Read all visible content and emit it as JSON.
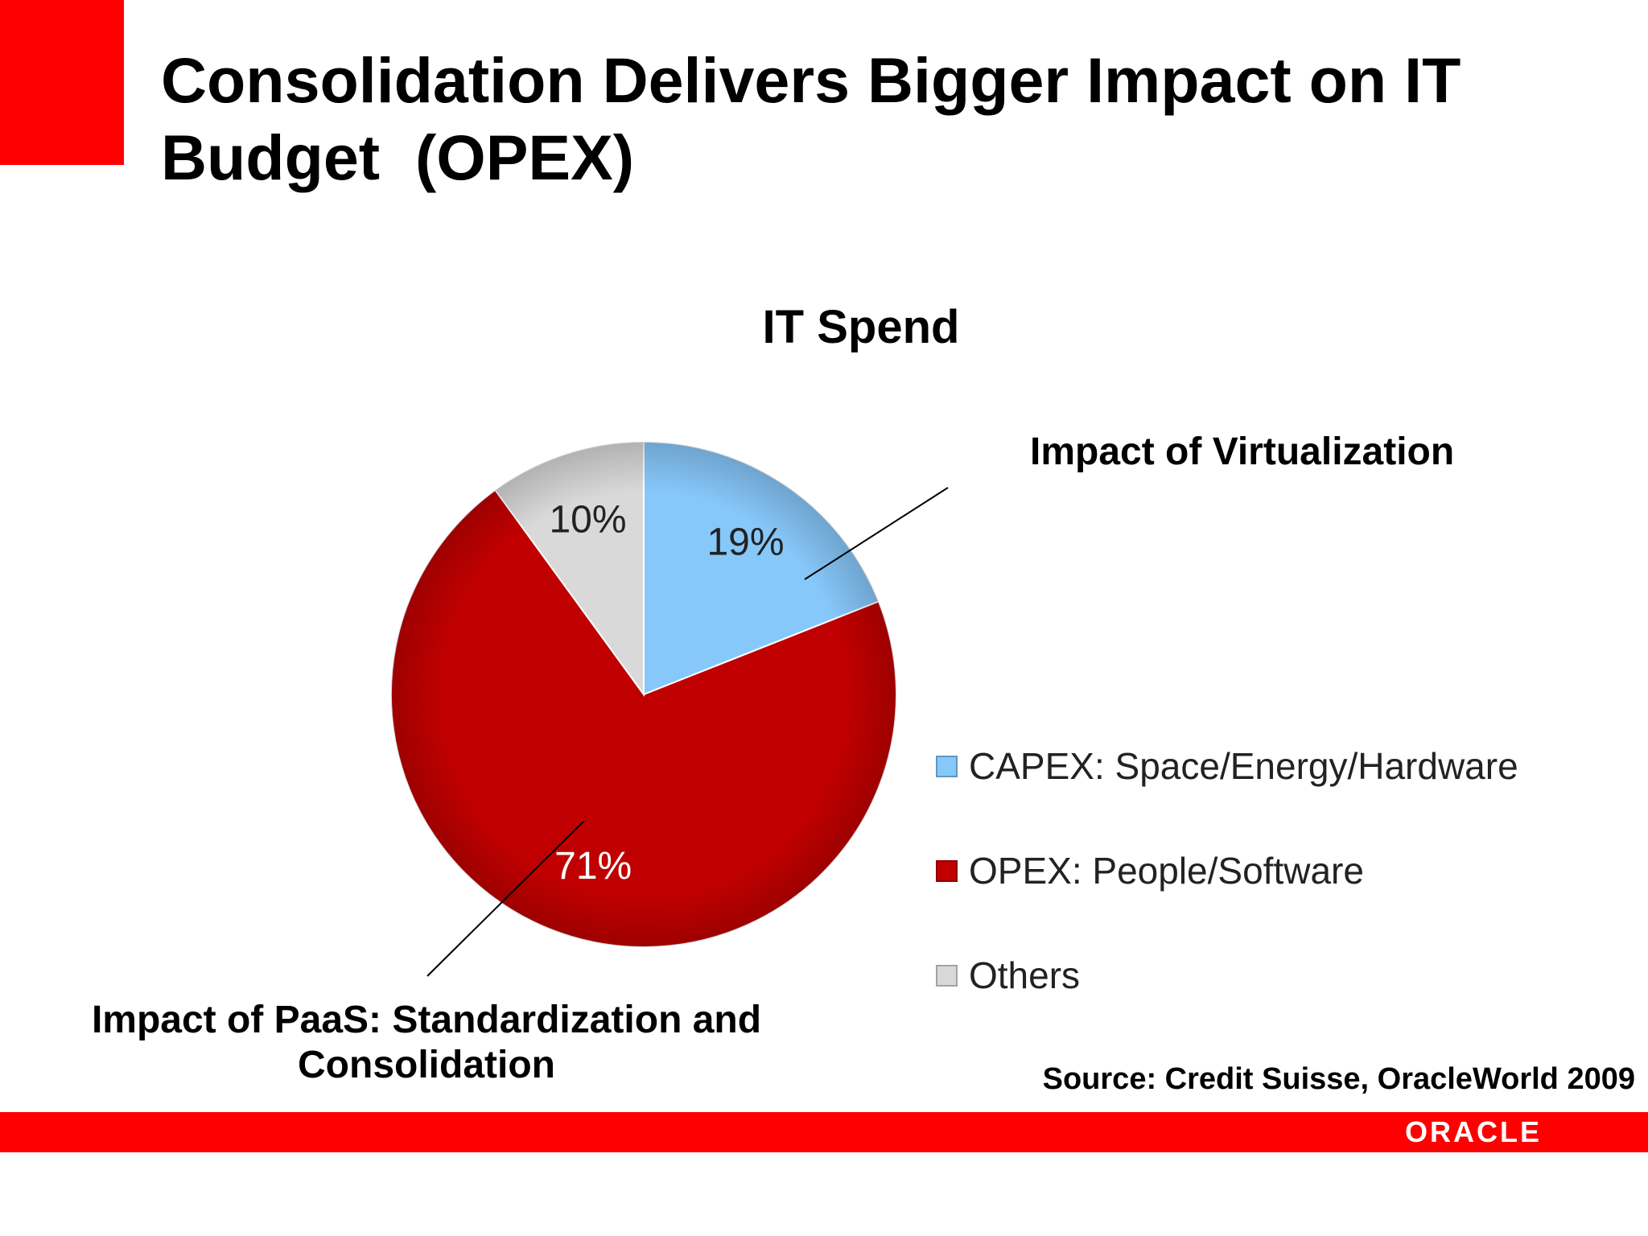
{
  "slide": {
    "title": "Consolidation Delivers Bigger Impact on IT\nBudget  (OPEX)",
    "annotation_virtualization": "Impact of Virtualization",
    "annotation_paas": "Impact of PaaS: Standardization and Consolidation",
    "source": "Source: Credit Suisse, OracleWorld 2009",
    "logo_text": "ORACLE",
    "accent_color": "#ff0000"
  },
  "chart_data": {
    "type": "pie",
    "title": "IT Spend",
    "legend_placement": "right",
    "slices": [
      {
        "label": "CAPEX: Space/Energy/Hardware",
        "value": 19,
        "value_label": "19%",
        "color": "#87c8fb"
      },
      {
        "label": "OPEX: People/Software",
        "value": 71,
        "value_label": "71%",
        "color": "#c00000"
      },
      {
        "label": "Others",
        "value": 10,
        "value_label": "10%",
        "color": "#d9d9d9"
      }
    ]
  }
}
